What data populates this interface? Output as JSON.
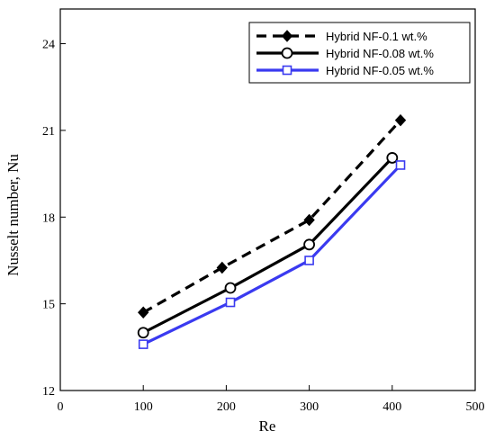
{
  "chart_data": {
    "type": "line",
    "title": "",
    "xlabel": "Re",
    "ylabel": "Nusselt number, Nu",
    "xlim": [
      0,
      500
    ],
    "ylim": [
      12,
      25.2
    ],
    "xticks": [
      0,
      100,
      200,
      300,
      400,
      500
    ],
    "yticks": [
      12,
      15,
      18,
      21,
      24
    ],
    "grid": false,
    "legend_position": "top-right",
    "series": [
      {
        "name": "Hybrid NF-0.1 wt.%",
        "color": "#000000",
        "line_style": "dashed",
        "marker": "diamond-filled",
        "x": [
          100,
          195,
          300,
          410
        ],
        "y": [
          14.7,
          16.25,
          17.9,
          21.35
        ]
      },
      {
        "name": "Hybrid NF-0.08 wt.%",
        "color": "#000000",
        "line_style": "solid",
        "marker": "circle-open",
        "x": [
          100,
          205,
          300,
          400
        ],
        "y": [
          14.0,
          15.55,
          17.05,
          20.05
        ]
      },
      {
        "name": "Hybrid NF-0.05 wt.%",
        "color": "#3a3af0",
        "line_style": "solid",
        "marker": "square-open",
        "x": [
          100,
          205,
          300,
          410
        ],
        "y": [
          13.6,
          15.05,
          16.5,
          19.8
        ]
      }
    ]
  }
}
